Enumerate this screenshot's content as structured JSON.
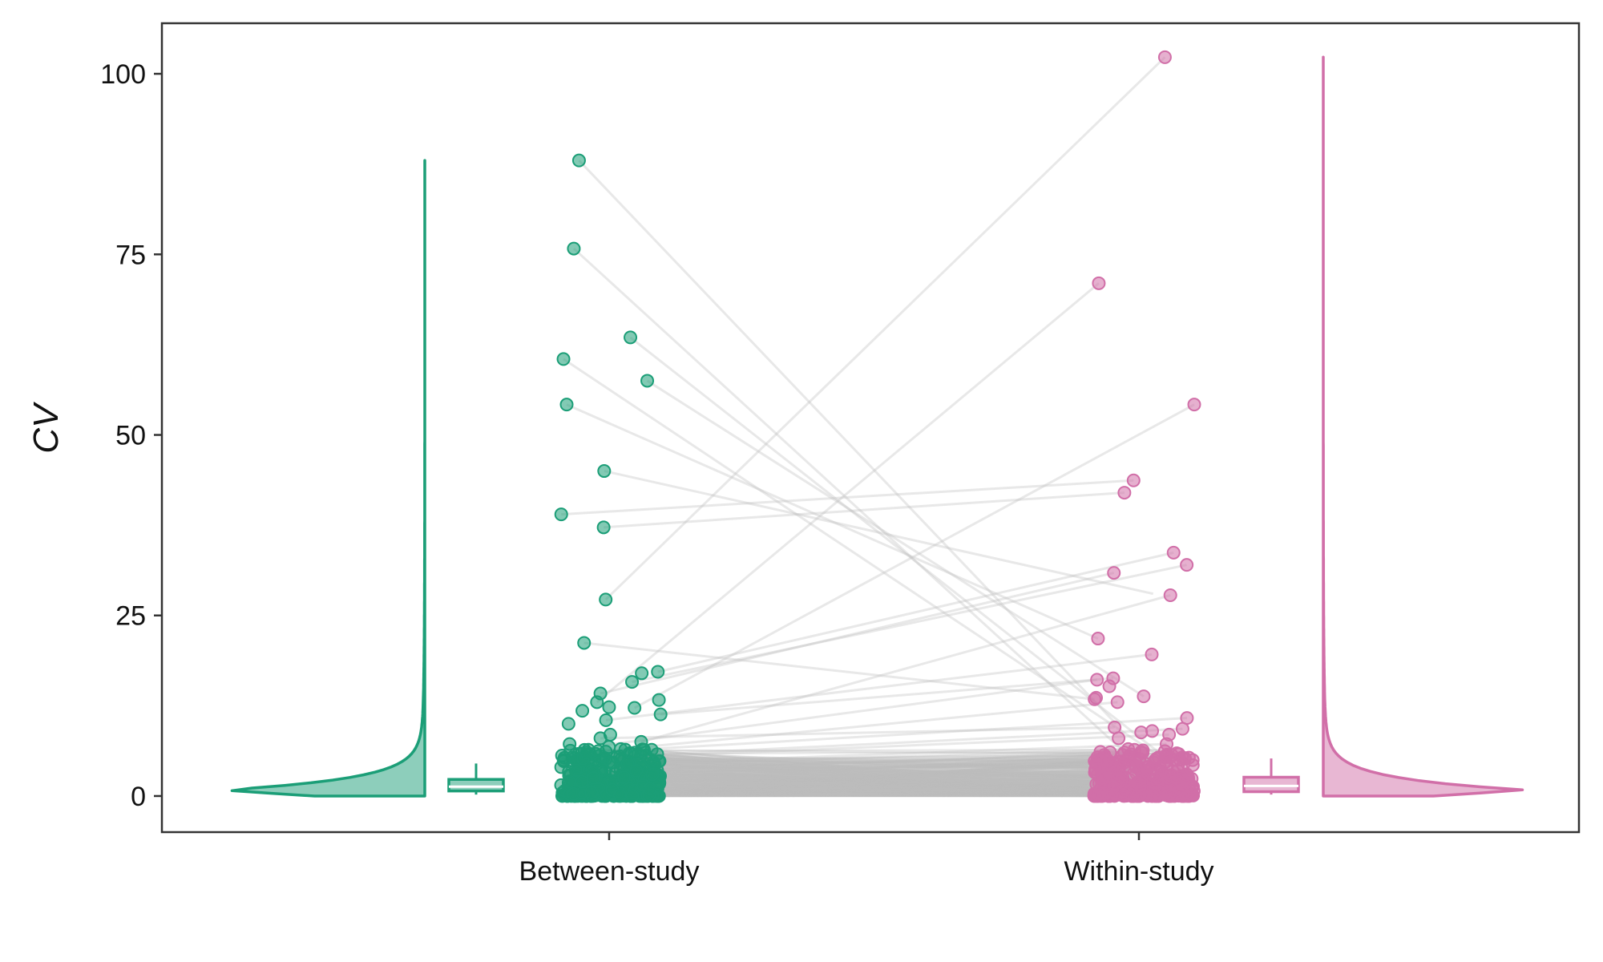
{
  "chart_data": {
    "type": "scatter",
    "title": "",
    "xlabel": "",
    "ylabel": "CV",
    "categories": [
      "Between-study",
      "Within-study"
    ],
    "yticks": [
      0,
      25,
      50,
      75,
      100
    ],
    "ylim": [
      -5,
      107
    ],
    "grid": false,
    "legend": "none",
    "colors": {
      "between": "#1b9e77",
      "within": "#d16fa8",
      "lines": "#bdbdbd"
    },
    "series": [
      {
        "category": "Between-study",
        "labeled_points": [
          88,
          75.8,
          63.5,
          60.5,
          57.5,
          54.2,
          45,
          39,
          37.2,
          27.2,
          21.2,
          17.2,
          17.0,
          15.8,
          14.2,
          13.3,
          13,
          12.3,
          12.2,
          11.8,
          11.3,
          10.5,
          10,
          8.5,
          8,
          7.5,
          7.2,
          6.8,
          6.5,
          6,
          5.5,
          5,
          4.5,
          4,
          3.5,
          3,
          2.5,
          2,
          1.5,
          1,
          0.5
        ],
        "box": {
          "min": 0.2,
          "q1": 0.7,
          "median": 1.3,
          "q3": 2.3,
          "whisker_max": 4.5
        }
      },
      {
        "category": "Within-study",
        "labeled_points": [
          102.3,
          71,
          54.2,
          43.7,
          42,
          33.7,
          32,
          30.9,
          27.8,
          21.8,
          19.6,
          16.3,
          16.1,
          15.2,
          13.8,
          13.6,
          13.4,
          13,
          10.8,
          9.5,
          9.3,
          9,
          8.8,
          8.5,
          8,
          7.2,
          6.5,
          6,
          5.5,
          5,
          4.5,
          4,
          3.5,
          3,
          2.5,
          2,
          1.5,
          1,
          0.5
        ],
        "box": {
          "min": 0.2,
          "q1": 0.6,
          "median": 1.4,
          "q3": 2.6,
          "whisker_max": 5.2
        }
      }
    ],
    "paired_lines": [
      [
        88,
        10
      ],
      [
        75.8,
        5.5
      ],
      [
        63.5,
        3
      ],
      [
        60.5,
        3
      ],
      [
        57.5,
        13.8
      ],
      [
        54.2,
        21.8
      ],
      [
        45,
        28
      ],
      [
        39,
        43.7
      ],
      [
        37.2,
        42
      ],
      [
        27.2,
        102.3
      ],
      [
        21.2,
        13.4
      ],
      [
        17.2,
        33.7
      ],
      [
        15.8,
        32
      ],
      [
        14.2,
        30.9
      ],
      [
        13,
        71
      ],
      [
        12.2,
        54.2
      ],
      [
        11.3,
        16.3
      ],
      [
        10.5,
        19.6
      ],
      [
        8,
        9.5
      ],
      [
        7.5,
        27.8
      ],
      [
        7,
        16.1
      ],
      [
        6.5,
        13
      ],
      [
        6,
        10.8
      ],
      [
        5.5,
        9.3
      ],
      [
        5,
        8.5
      ],
      [
        4.5,
        7.2
      ],
      [
        4,
        6.5
      ],
      [
        3.5,
        6
      ],
      [
        3,
        5
      ],
      [
        2.5,
        4.5
      ],
      [
        2,
        3.5
      ],
      [
        1.5,
        2.5
      ],
      [
        1,
        2
      ],
      [
        0.5,
        1
      ]
    ]
  }
}
